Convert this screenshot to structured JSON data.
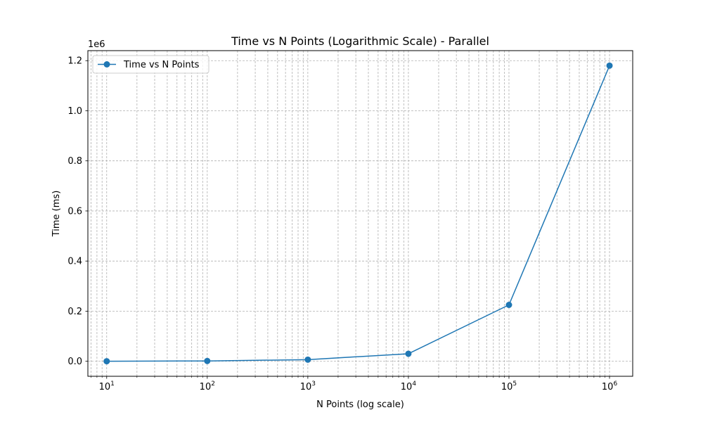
{
  "chart_data": {
    "type": "line",
    "title": "Time vs N Points (Logarithmic Scale) - Parallel",
    "xlabel": "N Points (log scale)",
    "ylabel": "Time (ms)",
    "xscale": "log",
    "xlim": [
      6.5,
      1700000
    ],
    "ylim": [
      -60000,
      1240000
    ],
    "y_offset_label": "1e6",
    "x_ticks": [
      {
        "value": 10,
        "base": "10",
        "exp": "1"
      },
      {
        "value": 100,
        "base": "10",
        "exp": "2"
      },
      {
        "value": 1000,
        "base": "10",
        "exp": "3"
      },
      {
        "value": 10000,
        "base": "10",
        "exp": "4"
      },
      {
        "value": 100000,
        "base": "10",
        "exp": "5"
      },
      {
        "value": 1000000,
        "base": "10",
        "exp": "6"
      }
    ],
    "y_ticks": [
      {
        "value": 0,
        "label": "0.0"
      },
      {
        "value": 200000,
        "label": "0.2"
      },
      {
        "value": 400000,
        "label": "0.4"
      },
      {
        "value": 600000,
        "label": "0.6"
      },
      {
        "value": 800000,
        "label": "0.8"
      },
      {
        "value": 1000000,
        "label": "1.0"
      },
      {
        "value": 1200000,
        "label": "1.2"
      }
    ],
    "grid": true,
    "legend_position": "top-left",
    "series": [
      {
        "name": "Time vs N Points",
        "color": "#1f77b4",
        "marker": "circle",
        "x": [
          10,
          100,
          1000,
          10000,
          100000,
          1000000
        ],
        "y": [
          150,
          1200,
          6500,
          30000,
          225000,
          1180000
        ]
      }
    ]
  }
}
